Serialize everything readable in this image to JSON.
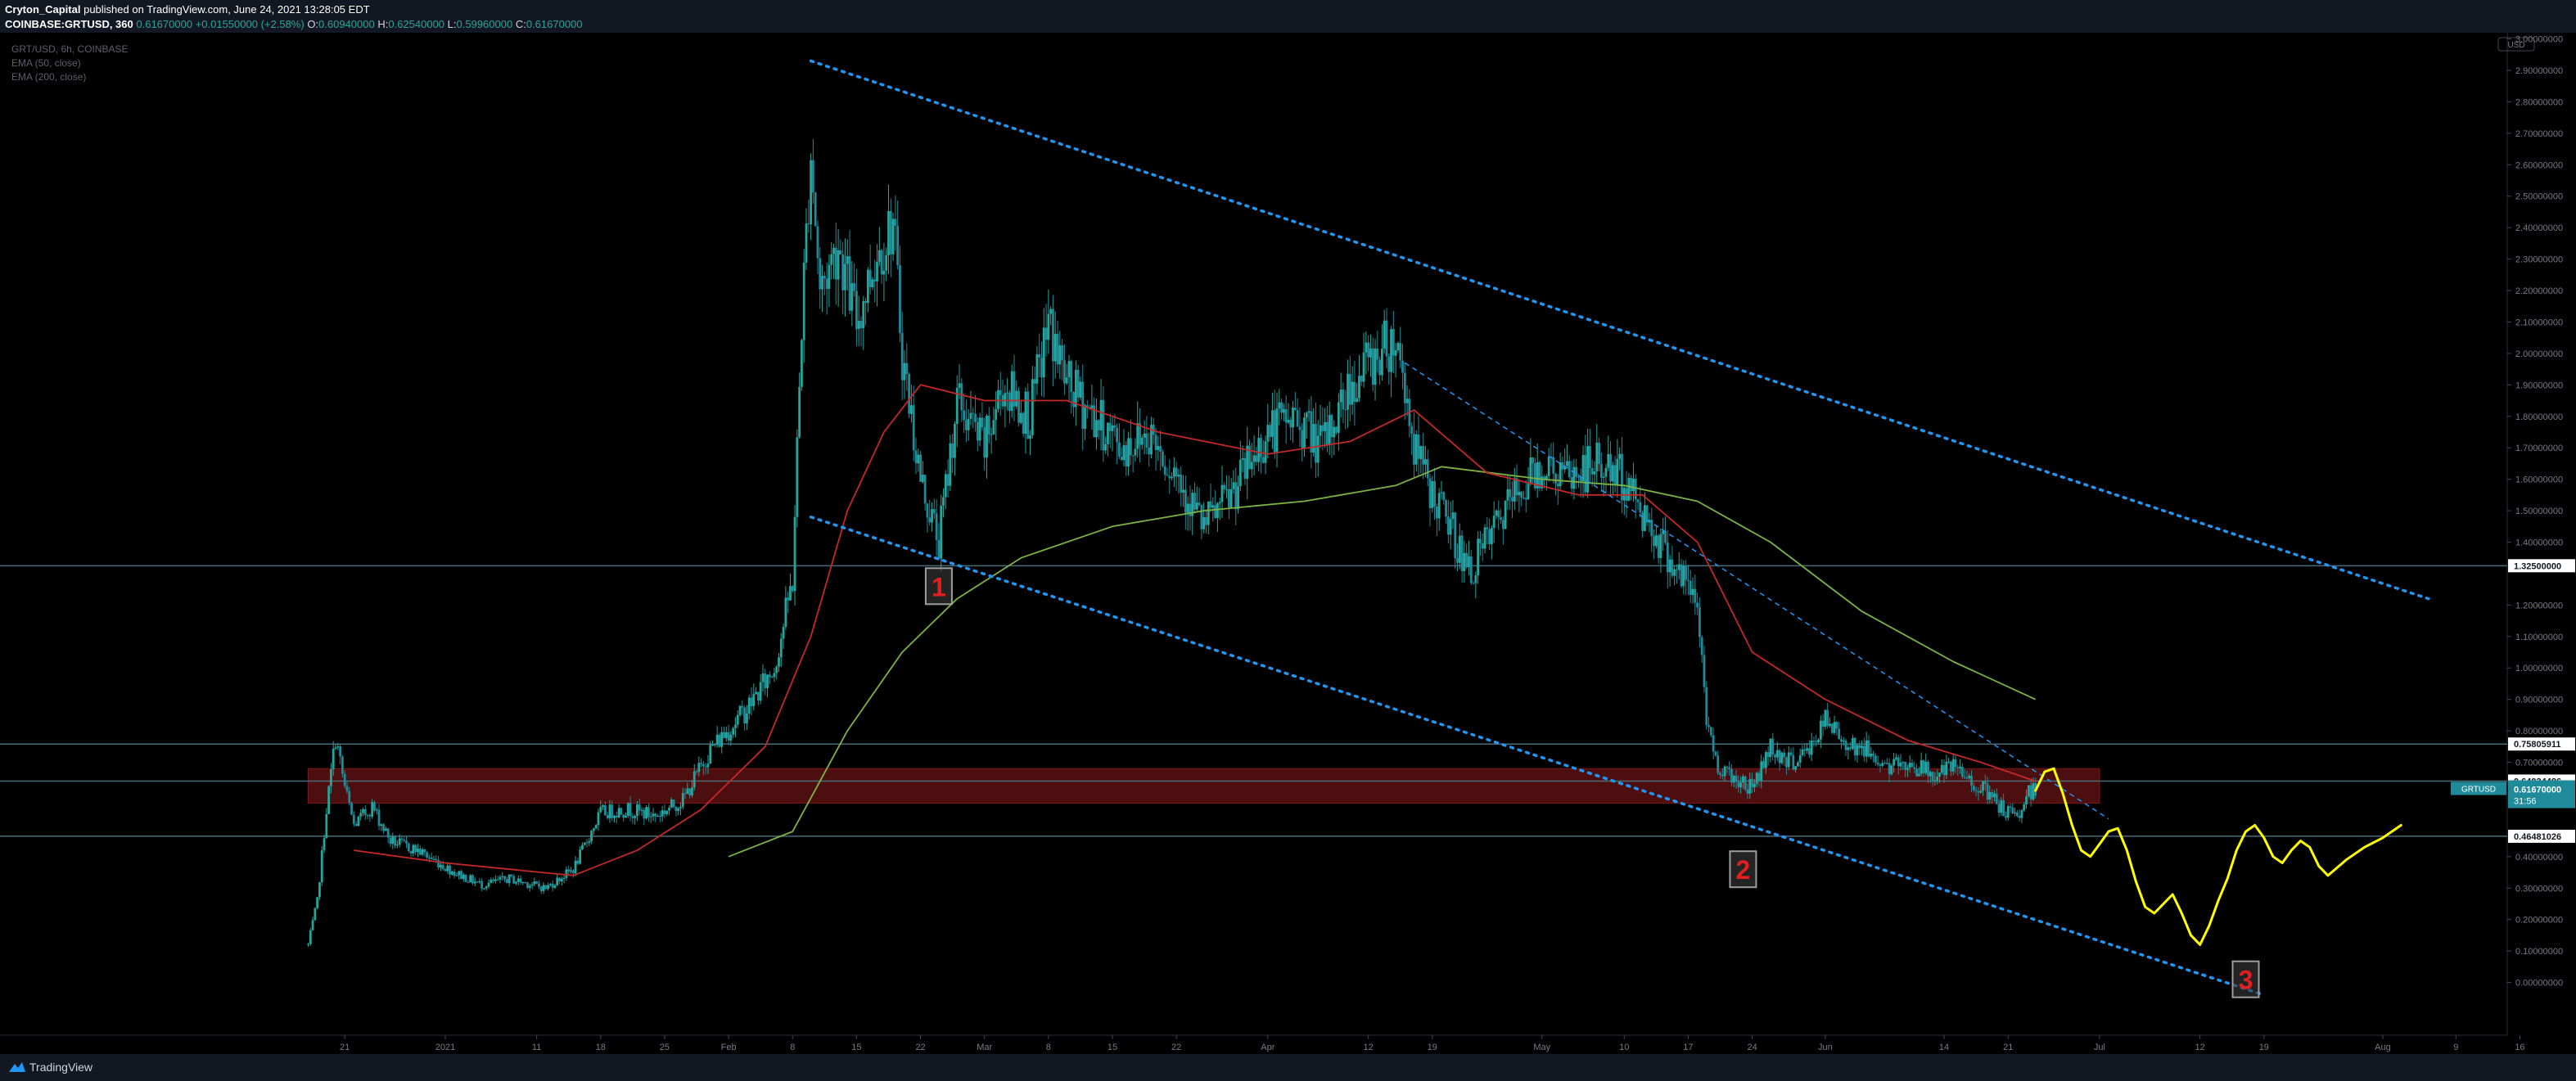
{
  "header": {
    "user": "Cryton_Capital",
    "published": "published on TradingView.com, June 24, 2021 13:28:05 EDT",
    "symbol": "COINBASE:GRTUSD, 360",
    "last": "0.61670000",
    "change": "+0.01550000 (+2.58%)",
    "o_label": "O:",
    "o_val": "0.60940000",
    "h_label": "H:",
    "h_val": "0.62540000",
    "l_label": "L:",
    "l_val": "0.59960000",
    "c_label": "C:",
    "c_val": "0.61670000"
  },
  "legend": {
    "line1": "GRT/USD, 6h, COINBASE",
    "line2": "EMA (50, close)",
    "line3": "EMA (200, close)"
  },
  "footer": {
    "brand": "TradingView"
  },
  "chart_data": {
    "type": "candlestick",
    "symbol": "GRT/USD",
    "interval": "6h",
    "exchange": "COINBASE",
    "currency_badge": "USD",
    "ylim": [
      -0.05,
      3.0
    ],
    "y_ticks": [
      {
        "v": 3.0,
        "l": "3.00000000"
      },
      {
        "v": 2.9,
        "l": "2.90000000"
      },
      {
        "v": 2.8,
        "l": "2.80000000"
      },
      {
        "v": 2.7,
        "l": "2.70000000"
      },
      {
        "v": 2.6,
        "l": "2.60000000"
      },
      {
        "v": 2.5,
        "l": "2.50000000"
      },
      {
        "v": 2.4,
        "l": "2.40000000"
      },
      {
        "v": 2.3,
        "l": "2.30000000"
      },
      {
        "v": 2.2,
        "l": "2.20000000"
      },
      {
        "v": 2.1,
        "l": "2.10000000"
      },
      {
        "v": 2.0,
        "l": "2.00000000"
      },
      {
        "v": 1.9,
        "l": "1.90000000"
      },
      {
        "v": 1.8,
        "l": "1.80000000"
      },
      {
        "v": 1.7,
        "l": "1.70000000"
      },
      {
        "v": 1.6,
        "l": "1.60000000"
      },
      {
        "v": 1.5,
        "l": "1.50000000"
      },
      {
        "v": 1.4,
        "l": "1.40000000"
      },
      {
        "v": 1.2,
        "l": "1.20000000"
      },
      {
        "v": 1.1,
        "l": "1.10000000"
      },
      {
        "v": 1.0,
        "l": "1.00000000"
      },
      {
        "v": 0.9,
        "l": "0.90000000"
      },
      {
        "v": 0.8,
        "l": "0.80000000"
      },
      {
        "v": 0.7,
        "l": "0.70000000"
      },
      {
        "v": 0.4,
        "l": "0.40000000"
      },
      {
        "v": 0.3,
        "l": "0.30000000"
      },
      {
        "v": 0.2,
        "l": "0.20000000"
      },
      {
        "v": 0.1,
        "l": "0.10000000"
      },
      {
        "v": 0.0,
        "l": "0.00000000"
      }
    ],
    "x_ticks": [
      {
        "d": "2020-12-21",
        "l": "21"
      },
      {
        "d": "2021-01-01",
        "l": "2021"
      },
      {
        "d": "2021-01-11",
        "l": "11"
      },
      {
        "d": "2021-01-18",
        "l": "18"
      },
      {
        "d": "2021-01-25",
        "l": "25"
      },
      {
        "d": "2021-02-01",
        "l": "Feb"
      },
      {
        "d": "2021-02-08",
        "l": "8"
      },
      {
        "d": "2021-02-15",
        "l": "15"
      },
      {
        "d": "2021-02-22",
        "l": "22"
      },
      {
        "d": "2021-03-01",
        "l": "Mar"
      },
      {
        "d": "2021-03-08",
        "l": "8"
      },
      {
        "d": "2021-03-15",
        "l": "15"
      },
      {
        "d": "2021-03-22",
        "l": "22"
      },
      {
        "d": "2021-04-01",
        "l": "Apr"
      },
      {
        "d": "2021-04-12",
        "l": "12"
      },
      {
        "d": "2021-04-19",
        "l": "19"
      },
      {
        "d": "2021-05-01",
        "l": "May"
      },
      {
        "d": "2021-05-10",
        "l": "10"
      },
      {
        "d": "2021-05-17",
        "l": "17"
      },
      {
        "d": "2021-05-24",
        "l": "24"
      },
      {
        "d": "2021-06-01",
        "l": "Jun"
      },
      {
        "d": "2021-06-14",
        "l": "14"
      },
      {
        "d": "2021-06-21",
        "l": "21"
      },
      {
        "d": "2021-07-01",
        "l": "Jul"
      },
      {
        "d": "2021-07-12",
        "l": "12"
      },
      {
        "d": "2021-07-19",
        "l": "19"
      },
      {
        "d": "2021-08-01",
        "l": "Aug"
      },
      {
        "d": "2021-08-09",
        "l": "9"
      },
      {
        "d": "2021-08-16",
        "l": "16"
      }
    ],
    "price_path": [
      [
        "2020-12-17",
        0.12
      ],
      [
        "2020-12-18",
        0.26
      ],
      [
        "2020-12-19",
        0.55
      ],
      [
        "2020-12-20",
        0.78
      ],
      [
        "2020-12-21",
        0.62
      ],
      [
        "2020-12-22",
        0.5
      ],
      [
        "2020-12-24",
        0.56
      ],
      [
        "2020-12-26",
        0.45
      ],
      [
        "2020-12-29",
        0.42
      ],
      [
        "2021-01-02",
        0.35
      ],
      [
        "2021-01-05",
        0.31
      ],
      [
        "2021-01-08",
        0.33
      ],
      [
        "2021-01-12",
        0.3
      ],
      [
        "2021-01-15",
        0.36
      ],
      [
        "2021-01-18",
        0.54
      ],
      [
        "2021-01-21",
        0.55
      ],
      [
        "2021-01-24",
        0.53
      ],
      [
        "2021-01-27",
        0.58
      ],
      [
        "2021-01-30",
        0.74
      ],
      [
        "2021-02-03",
        0.87
      ],
      [
        "2021-02-06",
        1.0
      ],
      [
        "2021-02-08",
        1.28
      ],
      [
        "2021-02-09",
        2.1
      ],
      [
        "2021-02-10",
        2.65
      ],
      [
        "2021-02-11",
        2.2
      ],
      [
        "2021-02-13",
        2.35
      ],
      [
        "2021-02-15",
        2.1
      ],
      [
        "2021-02-17",
        2.3
      ],
      [
        "2021-02-19",
        2.42
      ],
      [
        "2021-02-20",
        2.0
      ],
      [
        "2021-02-22",
        1.6
      ],
      [
        "2021-02-24",
        1.4
      ],
      [
        "2021-02-26",
        1.85
      ],
      [
        "2021-03-01",
        1.7
      ],
      [
        "2021-03-03",
        1.9
      ],
      [
        "2021-03-06",
        1.8
      ],
      [
        "2021-03-08",
        2.1
      ],
      [
        "2021-03-10",
        1.9
      ],
      [
        "2021-03-13",
        1.8
      ],
      [
        "2021-03-16",
        1.7
      ],
      [
        "2021-03-19",
        1.75
      ],
      [
        "2021-03-22",
        1.62
      ],
      [
        "2021-03-25",
        1.45
      ],
      [
        "2021-03-28",
        1.55
      ],
      [
        "2021-04-01",
        1.75
      ],
      [
        "2021-04-04",
        1.8
      ],
      [
        "2021-04-07",
        1.7
      ],
      [
        "2021-04-10",
        1.9
      ],
      [
        "2021-04-13",
        2.0
      ],
      [
        "2021-04-15",
        2.05
      ],
      [
        "2021-04-16",
        1.9
      ],
      [
        "2021-04-17",
        1.7
      ],
      [
        "2021-04-19",
        1.55
      ],
      [
        "2021-04-21",
        1.45
      ],
      [
        "2021-04-23",
        1.3
      ],
      [
        "2021-04-25",
        1.4
      ],
      [
        "2021-04-28",
        1.55
      ],
      [
        "2021-05-01",
        1.65
      ],
      [
        "2021-05-04",
        1.6
      ],
      [
        "2021-05-07",
        1.65
      ],
      [
        "2021-05-10",
        1.6
      ],
      [
        "2021-05-12",
        1.5
      ],
      [
        "2021-05-14",
        1.4
      ],
      [
        "2021-05-16",
        1.3
      ],
      [
        "2021-05-18",
        1.2
      ],
      [
        "2021-05-19",
        0.85
      ],
      [
        "2021-05-20",
        0.7
      ],
      [
        "2021-05-22",
        0.65
      ],
      [
        "2021-05-24",
        0.62
      ],
      [
        "2021-05-26",
        0.75
      ],
      [
        "2021-05-28",
        0.7
      ],
      [
        "2021-05-30",
        0.73
      ],
      [
        "2021-06-01",
        0.83
      ],
      [
        "2021-06-03",
        0.77
      ],
      [
        "2021-06-06",
        0.73
      ],
      [
        "2021-06-08",
        0.68
      ],
      [
        "2021-06-10",
        0.7
      ],
      [
        "2021-06-13",
        0.66
      ],
      [
        "2021-06-15",
        0.68
      ],
      [
        "2021-06-18",
        0.62
      ],
      [
        "2021-06-20",
        0.56
      ],
      [
        "2021-06-22",
        0.52
      ],
      [
        "2021-06-23",
        0.6
      ],
      [
        "2021-06-24",
        0.6167
      ]
    ],
    "ema50": [
      [
        "2020-12-22",
        0.42
      ],
      [
        "2021-01-01",
        0.38
      ],
      [
        "2021-01-08",
        0.36
      ],
      [
        "2021-01-15",
        0.34
      ],
      [
        "2021-01-22",
        0.42
      ],
      [
        "2021-01-29",
        0.55
      ],
      [
        "2021-02-05",
        0.75
      ],
      [
        "2021-02-10",
        1.1
      ],
      [
        "2021-02-14",
        1.5
      ],
      [
        "2021-02-18",
        1.75
      ],
      [
        "2021-02-22",
        1.9
      ],
      [
        "2021-03-01",
        1.85
      ],
      [
        "2021-03-10",
        1.85
      ],
      [
        "2021-03-20",
        1.75
      ],
      [
        "2021-04-01",
        1.68
      ],
      [
        "2021-04-10",
        1.72
      ],
      [
        "2021-04-17",
        1.82
      ],
      [
        "2021-04-25",
        1.62
      ],
      [
        "2021-05-05",
        1.55
      ],
      [
        "2021-05-12",
        1.55
      ],
      [
        "2021-05-18",
        1.4
      ],
      [
        "2021-05-24",
        1.05
      ],
      [
        "2021-06-01",
        0.9
      ],
      [
        "2021-06-10",
        0.77
      ],
      [
        "2021-06-18",
        0.7
      ],
      [
        "2021-06-24",
        0.64
      ]
    ],
    "ema200": [
      [
        "2021-02-01",
        0.4
      ],
      [
        "2021-02-08",
        0.48
      ],
      [
        "2021-02-14",
        0.8
      ],
      [
        "2021-02-20",
        1.05
      ],
      [
        "2021-02-26",
        1.22
      ],
      [
        "2021-03-05",
        1.35
      ],
      [
        "2021-03-15",
        1.45
      ],
      [
        "2021-03-25",
        1.5
      ],
      [
        "2021-04-05",
        1.53
      ],
      [
        "2021-04-15",
        1.58
      ],
      [
        "2021-04-20",
        1.64
      ],
      [
        "2021-05-01",
        1.6
      ],
      [
        "2021-05-10",
        1.58
      ],
      [
        "2021-05-18",
        1.53
      ],
      [
        "2021-05-26",
        1.4
      ],
      [
        "2021-06-05",
        1.18
      ],
      [
        "2021-06-15",
        1.02
      ],
      [
        "2021-06-24",
        0.9
      ]
    ],
    "horizontal_levels": [
      {
        "price": 1.325,
        "label": "1.32500000"
      },
      {
        "price": 0.75805911,
        "label": "0.75805911"
      },
      {
        "price": 0.64034486,
        "label": "0.64034486"
      },
      {
        "price": 0.46481026,
        "label": "0.46481026"
      }
    ],
    "current_price": {
      "symbol": "GRTUSD",
      "price": "0.61670000",
      "countdown": "31:56"
    },
    "zone": {
      "from_date": "2020-12-17",
      "to_date": "2021-07-01",
      "top": 0.68,
      "bottom": 0.57
    },
    "trendlines": [
      {
        "name": "upper",
        "from": [
          "2021-02-10",
          2.93
        ],
        "to": [
          "2021-08-06",
          1.22
        ]
      },
      {
        "name": "lower",
        "from": [
          "2021-02-10",
          1.48
        ],
        "to": [
          "2021-07-19",
          -0.04
        ]
      },
      {
        "name": "dashed",
        "from": [
          "2021-04-16",
          1.97
        ],
        "to": [
          "2021-07-02",
          0.52
        ]
      }
    ],
    "projection": [
      [
        "2021-06-24",
        0.61
      ],
      [
        "2021-06-25",
        0.67
      ],
      [
        "2021-06-26",
        0.68
      ],
      [
        "2021-06-27",
        0.6
      ],
      [
        "2021-06-28",
        0.5
      ],
      [
        "2021-06-29",
        0.42
      ],
      [
        "2021-06-30",
        0.4
      ],
      [
        "2021-07-01",
        0.44
      ],
      [
        "2021-07-02",
        0.48
      ],
      [
        "2021-07-03",
        0.49
      ],
      [
        "2021-07-04",
        0.42
      ],
      [
        "2021-07-05",
        0.32
      ],
      [
        "2021-07-06",
        0.24
      ],
      [
        "2021-07-07",
        0.22
      ],
      [
        "2021-07-08",
        0.25
      ],
      [
        "2021-07-09",
        0.28
      ],
      [
        "2021-07-10",
        0.22
      ],
      [
        "2021-07-11",
        0.15
      ],
      [
        "2021-07-12",
        0.12
      ],
      [
        "2021-07-13",
        0.18
      ],
      [
        "2021-07-14",
        0.26
      ],
      [
        "2021-07-15",
        0.33
      ],
      [
        "2021-07-16",
        0.42
      ],
      [
        "2021-07-17",
        0.48
      ],
      [
        "2021-07-18",
        0.5
      ],
      [
        "2021-07-19",
        0.46
      ],
      [
        "2021-07-20",
        0.4
      ],
      [
        "2021-07-21",
        0.38
      ],
      [
        "2021-07-22",
        0.42
      ],
      [
        "2021-07-23",
        0.45
      ],
      [
        "2021-07-24",
        0.43
      ],
      [
        "2021-07-25",
        0.37
      ],
      [
        "2021-07-26",
        0.34
      ],
      [
        "2021-07-28",
        0.39
      ],
      [
        "2021-07-30",
        0.43
      ],
      [
        "2021-08-01",
        0.46
      ],
      [
        "2021-08-03",
        0.5
      ]
    ],
    "markers": [
      {
        "label": "1",
        "date": "2021-02-24",
        "price": 1.26
      },
      {
        "label": "2",
        "date": "2021-05-23",
        "price": 0.36
      },
      {
        "label": "3",
        "date": "2021-07-17",
        "price": 0.01
      }
    ],
    "colors": {
      "candle_up": "#26a69a",
      "candle_down": "#1f8a99",
      "ema50": "#c62828",
      "ema200": "#7cb342",
      "trendline": "#2196f3",
      "projection": "#ffff00",
      "zone": "#8b1a1a",
      "level": "#4a6b78",
      "marker_text": "#e02020"
    }
  }
}
